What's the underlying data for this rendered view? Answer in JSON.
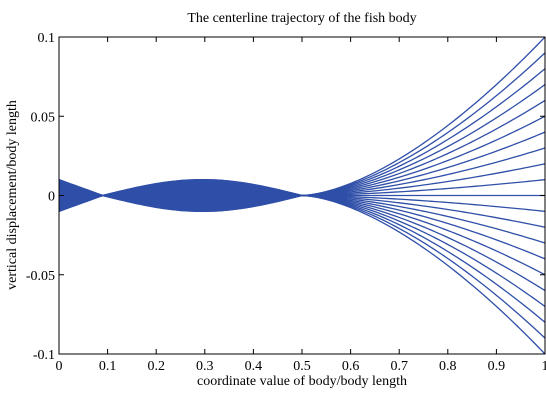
{
  "chart_data": {
    "type": "line",
    "title": "The centerline trajectory of the fish body",
    "xlabel": "coordinate value of body/body length",
    "ylabel": "vertical displacement/body length",
    "xlim": [
      0,
      1
    ],
    "ylim": [
      -0.1,
      0.1
    ],
    "xticks": [
      0,
      0.1,
      0.2,
      0.3,
      0.4,
      0.5,
      0.6,
      0.7,
      0.8,
      0.9,
      1
    ],
    "xtick_labels": [
      "0",
      "0.1",
      "0.2",
      "0.3",
      "0.4",
      "0.5",
      "0.6",
      "0.7",
      "0.8",
      "0.9",
      "1"
    ],
    "yticks": [
      -0.1,
      -0.05,
      0,
      0.05,
      0.1
    ],
    "ytick_labels": [
      "-0.1",
      "-0.05",
      "0",
      "0.05",
      "0.1"
    ],
    "grid": false,
    "line_color": "#2f4fa8",
    "series_description": "Envelope of body centerline: y = a(x) * phase, where a(x) = 0.01*(1-x/0.09) for x<0.09, -0.01*sin(pi*(x-0.09)/0.41) for 0.09<=x<=0.5, 0.1*((x-0.5)/0.5)^1.6 for x>0.5",
    "phases": [
      1,
      0.9,
      0.8,
      0.7,
      0.6,
      0.5,
      0.4,
      0.3,
      0.2,
      0.1,
      0,
      -0.1,
      -0.2,
      -0.3,
      -0.4,
      -0.5,
      -0.6,
      -0.7,
      -0.8,
      -0.9,
      -1
    ],
    "node_x": [
      0.09,
      0.5
    ]
  }
}
